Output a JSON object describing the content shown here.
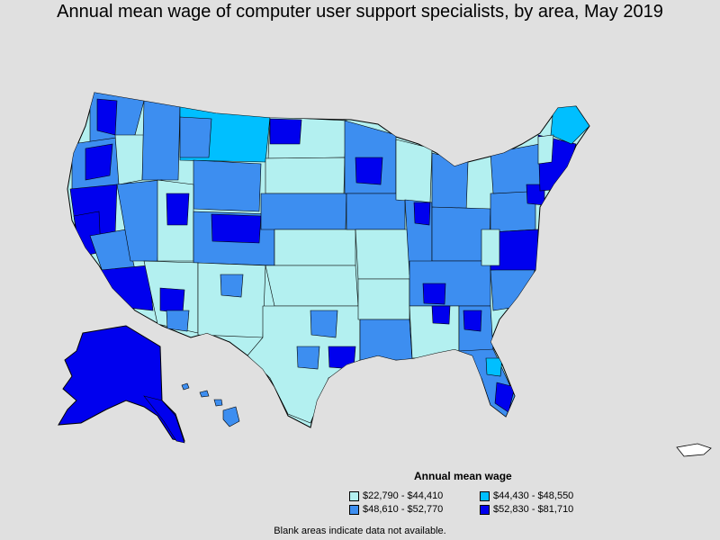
{
  "title": "Annual mean wage of computer user support specialists, by area, May 2019",
  "legend": {
    "title": "Annual mean wage",
    "items": [
      {
        "label": "$22,790 - $44,410",
        "color": "#b3f0f0"
      },
      {
        "label": "$44,430 - $48,550",
        "color": "#00bfff"
      },
      {
        "label": "$48,610 - $52,770",
        "color": "#3d8ef0"
      },
      {
        "label": "$52,830 - $81,710",
        "color": "#0000ee"
      }
    ]
  },
  "note": "Blank areas indicate data not available.",
  "colors": {
    "background": "#e0e0e0",
    "low": "#b3f0f0",
    "mid_low": "#00bfff",
    "mid_high": "#3d8ef0",
    "high": "#0000ee",
    "border": "#000000"
  }
}
